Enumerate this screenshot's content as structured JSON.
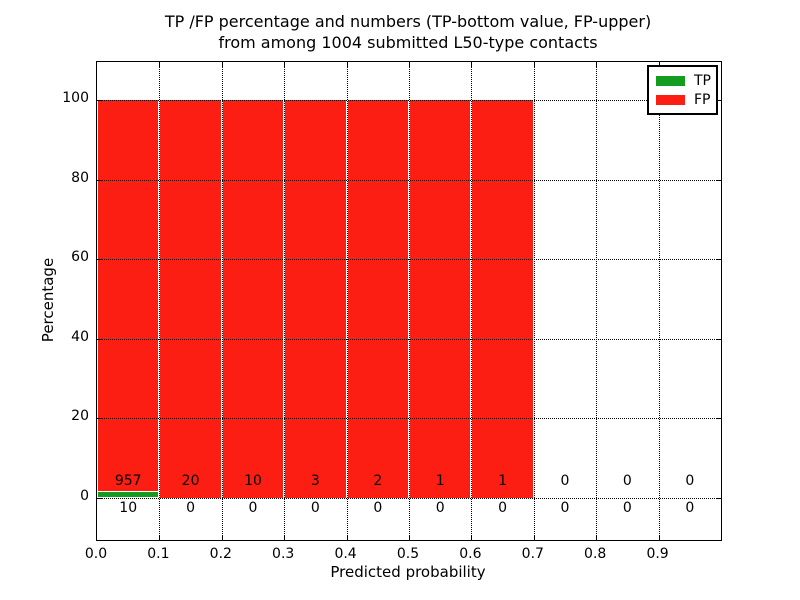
{
  "title": {
    "line1": "TP /FP percentage and numbers (TP-bottom value, FP-upper)",
    "line2": "from among 1004 submitted L50-type contacts"
  },
  "axes": {
    "xlabel": "Predicted probability",
    "ylabel": "Percentage",
    "x_ticks": [
      "0.0",
      "0.1",
      "0.2",
      "0.3",
      "0.4",
      "0.5",
      "0.6",
      "0.7",
      "0.8",
      "0.9"
    ],
    "y_ticks": [
      "100",
      "80",
      "60",
      "40",
      "20",
      "0"
    ]
  },
  "legend": {
    "items": [
      {
        "label": "TP",
        "color": "#149c20"
      },
      {
        "label": "FP",
        "color": "#fc1d13"
      }
    ]
  },
  "chart_data": {
    "type": "bar",
    "variant": "stacked-histogram",
    "title": "TP /FP percentage and numbers (TP-bottom value, FP-upper) from among 1004 submitted L50-type contacts",
    "xlabel": "Predicted probability",
    "ylabel": "Percentage",
    "bins": [
      "0.0-0.1",
      "0.1-0.2",
      "0.2-0.3",
      "0.3-0.4",
      "0.4-0.5",
      "0.5-0.6",
      "0.6-0.7",
      "0.7-0.8",
      "0.8-0.9",
      "0.9-1.0"
    ],
    "series": [
      {
        "name": "TP",
        "color": "#149c20",
        "counts": [
          10,
          0,
          0,
          0,
          0,
          0,
          0,
          0,
          0,
          0
        ],
        "percent": [
          1.0,
          0,
          0,
          0,
          0,
          0,
          0,
          0,
          0,
          0
        ]
      },
      {
        "name": "FP",
        "color": "#fc1d13",
        "counts": [
          957,
          20,
          10,
          3,
          2,
          1,
          1,
          0,
          0,
          0
        ],
        "percent": [
          99.0,
          100,
          100,
          100,
          100,
          100,
          100,
          0,
          0,
          0
        ]
      }
    ],
    "total_submitted": 1004,
    "xlim": [
      0.0,
      1.0
    ],
    "ylim_display": [
      -11,
      109
    ],
    "y_gridlines": [
      0,
      20,
      40,
      60,
      80,
      100
    ],
    "grid_style": "dotted",
    "legend_position": "upper-right"
  }
}
